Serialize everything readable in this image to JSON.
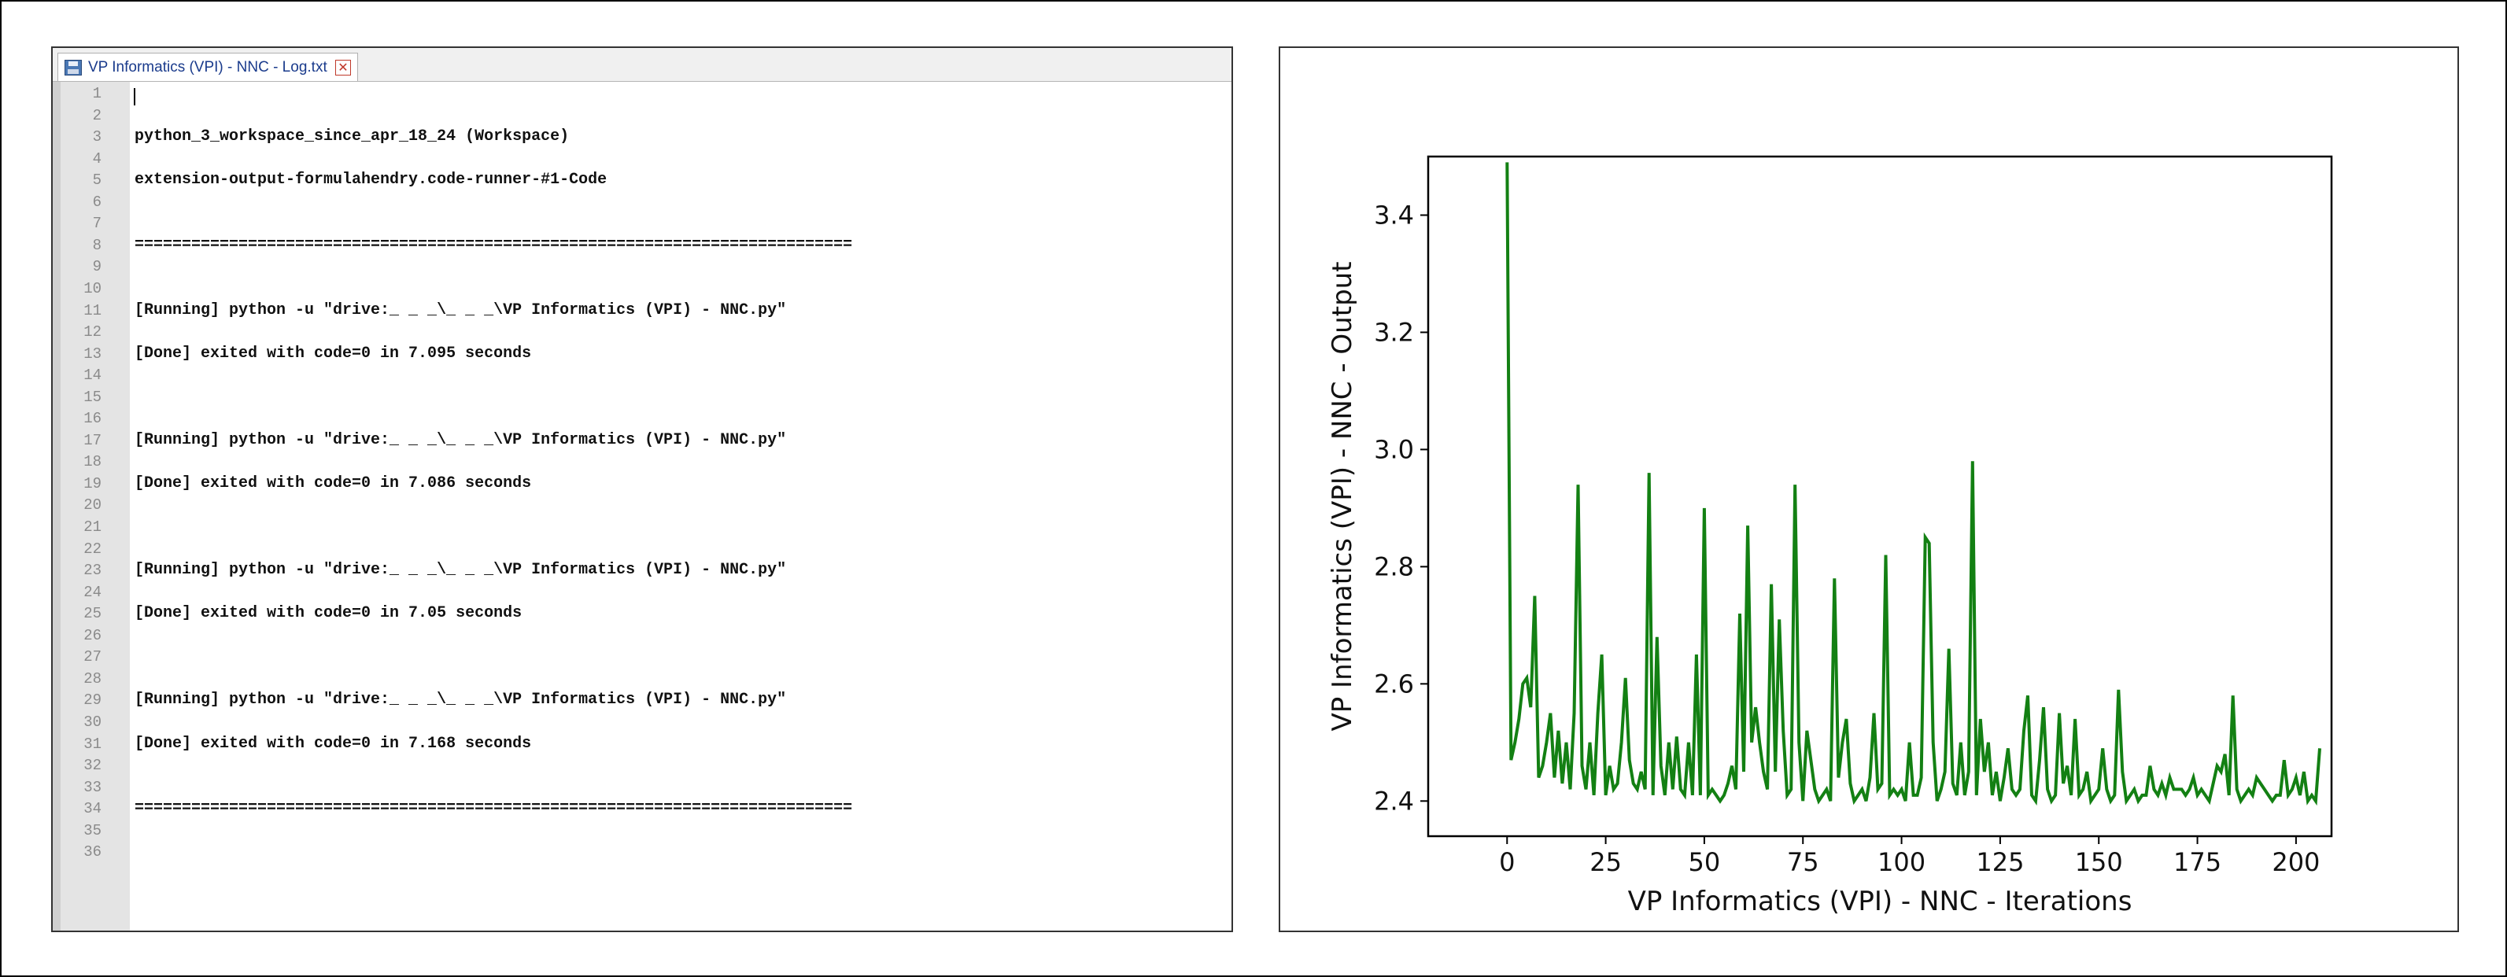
{
  "editor": {
    "tab_title": "VP Informatics (VPI) - NNC - Log.txt",
    "lines": [
      {
        "num": "1",
        "text": ""
      },
      {
        "num": "2",
        "text": ""
      },
      {
        "num": "3",
        "text": "python_3_workspace_since_apr_18_24 (Workspace)"
      },
      {
        "num": "4",
        "text": ""
      },
      {
        "num": "5",
        "text": "extension-output-formulahendry.code-runner-#1-Code"
      },
      {
        "num": "6",
        "text": ""
      },
      {
        "num": "7",
        "text": ""
      },
      {
        "num": "8",
        "text": "============================================================================"
      },
      {
        "num": "9",
        "text": ""
      },
      {
        "num": "10",
        "text": ""
      },
      {
        "num": "11",
        "text": "[Running] python -u \"drive:_ _ _\\_ _ _\\VP Informatics (VPI) - NNC.py\""
      },
      {
        "num": "12",
        "text": ""
      },
      {
        "num": "13",
        "text": "[Done] exited with code=0 in 7.095 seconds"
      },
      {
        "num": "14",
        "text": ""
      },
      {
        "num": "15",
        "text": ""
      },
      {
        "num": "16",
        "text": ""
      },
      {
        "num": "17",
        "text": "[Running] python -u \"drive:_ _ _\\_ _ _\\VP Informatics (VPI) - NNC.py\""
      },
      {
        "num": "18",
        "text": ""
      },
      {
        "num": "19",
        "text": "[Done] exited with code=0 in 7.086 seconds"
      },
      {
        "num": "20",
        "text": ""
      },
      {
        "num": "21",
        "text": ""
      },
      {
        "num": "22",
        "text": ""
      },
      {
        "num": "23",
        "text": "[Running] python -u \"drive:_ _ _\\_ _ _\\VP Informatics (VPI) - NNC.py\""
      },
      {
        "num": "24",
        "text": ""
      },
      {
        "num": "25",
        "text": "[Done] exited with code=0 in 7.05 seconds"
      },
      {
        "num": "26",
        "text": ""
      },
      {
        "num": "27",
        "text": ""
      },
      {
        "num": "28",
        "text": ""
      },
      {
        "num": "29",
        "text": "[Running] python -u \"drive:_ _ _\\_ _ _\\VP Informatics (VPI) - NNC.py\""
      },
      {
        "num": "30",
        "text": ""
      },
      {
        "num": "31",
        "text": "[Done] exited with code=0 in 7.168 seconds"
      },
      {
        "num": "32",
        "text": ""
      },
      {
        "num": "33",
        "text": ""
      },
      {
        "num": "34",
        "text": "============================================================================"
      },
      {
        "num": "35",
        "text": ""
      },
      {
        "num": "36",
        "text": ""
      }
    ]
  },
  "chart_data": {
    "type": "line",
    "title": "",
    "xlabel": "VP Informatics (VPI) - NNC - Iterations",
    "ylabel": "VP Informatics (VPI) - NNC - Output",
    "xlim": [
      -20,
      209
    ],
    "ylim": [
      2.34,
      3.5
    ],
    "xticks": [
      0,
      25,
      50,
      75,
      100,
      125,
      150,
      175,
      200
    ],
    "yticks": [
      2.4,
      2.6,
      2.8,
      3.0,
      3.2,
      3.4
    ],
    "grid": false,
    "line_color": "#138013",
    "series": [
      {
        "values": [
          3.49,
          2.47,
          2.5,
          2.54,
          2.6,
          2.61,
          2.56,
          2.75,
          2.44,
          2.46,
          2.5,
          2.55,
          2.44,
          2.52,
          2.43,
          2.5,
          2.42,
          2.55,
          2.94,
          2.46,
          2.42,
          2.5,
          2.41,
          2.55,
          2.65,
          2.41,
          2.46,
          2.42,
          2.43,
          2.5,
          2.61,
          2.47,
          2.43,
          2.42,
          2.45,
          2.42,
          2.96,
          2.41,
          2.68,
          2.46,
          2.41,
          2.5,
          2.42,
          2.51,
          2.42,
          2.41,
          2.5,
          2.41,
          2.65,
          2.41,
          2.9,
          2.41,
          2.42,
          2.41,
          2.4,
          2.41,
          2.43,
          2.46,
          2.42,
          2.72,
          2.45,
          2.87,
          2.5,
          2.56,
          2.5,
          2.45,
          2.42,
          2.77,
          2.45,
          2.71,
          2.52,
          2.41,
          2.42,
          2.94,
          2.5,
          2.4,
          2.52,
          2.47,
          2.42,
          2.4,
          2.41,
          2.42,
          2.4,
          2.78,
          2.44,
          2.5,
          2.54,
          2.43,
          2.4,
          2.41,
          2.42,
          2.4,
          2.44,
          2.55,
          2.42,
          2.43,
          2.82,
          2.41,
          2.42,
          2.41,
          2.42,
          2.4,
          2.5,
          2.41,
          2.41,
          2.44,
          2.85,
          2.84,
          2.5,
          2.4,
          2.42,
          2.45,
          2.66,
          2.43,
          2.41,
          2.5,
          2.41,
          2.45,
          2.98,
          2.41,
          2.54,
          2.45,
          2.5,
          2.41,
          2.45,
          2.4,
          2.44,
          2.49,
          2.42,
          2.41,
          2.42,
          2.52,
          2.58,
          2.41,
          2.4,
          2.47,
          2.56,
          2.42,
          2.4,
          2.41,
          2.55,
          2.43,
          2.46,
          2.41,
          2.54,
          2.41,
          2.42,
          2.45,
          2.4,
          2.41,
          2.42,
          2.49,
          2.42,
          2.4,
          2.41,
          2.59,
          2.45,
          2.4,
          2.41,
          2.42,
          2.4,
          2.41,
          2.41,
          2.46,
          2.42,
          2.41,
          2.43,
          2.41,
          2.44,
          2.42,
          2.42,
          2.42,
          2.41,
          2.42,
          2.44,
          2.41,
          2.42,
          2.41,
          2.4,
          2.43,
          2.46,
          2.45,
          2.48,
          2.41,
          2.58,
          2.42,
          2.4,
          2.41,
          2.42,
          2.41,
          2.44,
          2.43,
          2.42,
          2.41,
          2.4,
          2.41,
          2.41,
          2.47,
          2.41,
          2.42,
          2.44,
          2.41,
          2.45,
          2.4,
          2.41,
          2.4,
          2.49
        ]
      }
    ]
  }
}
